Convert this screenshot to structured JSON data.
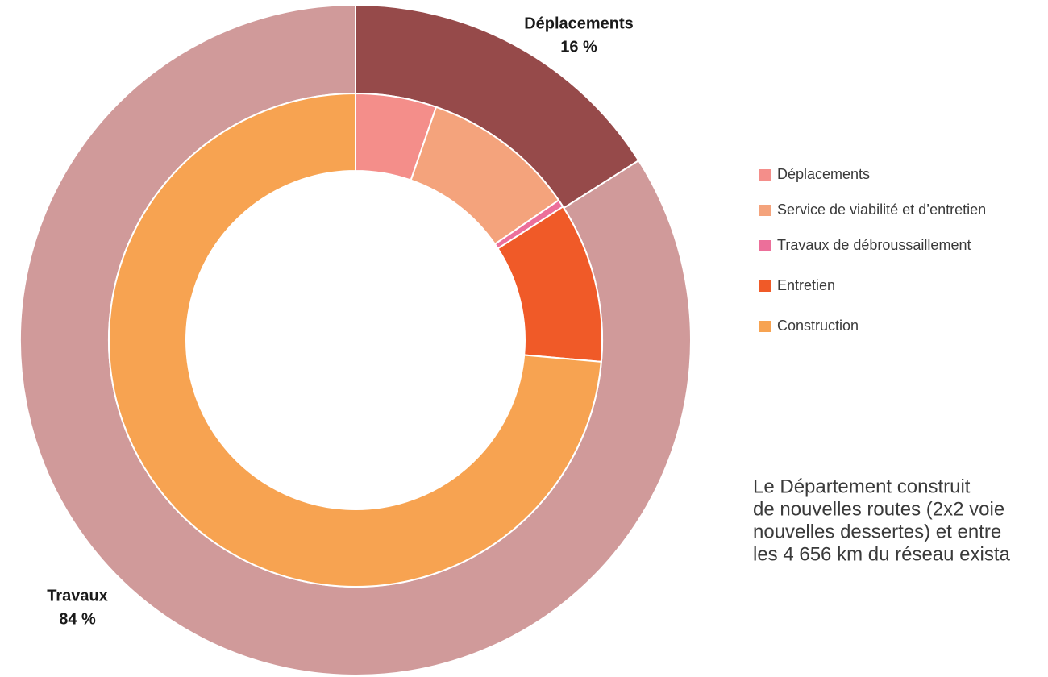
{
  "chart_data": {
    "type": "donut",
    "rings": [
      {
        "categories": [
          "Déplacements",
          "Travaux"
        ],
        "values": [
          16,
          84
        ],
        "value_labels": [
          "16 %",
          "84 %"
        ],
        "colors": [
          "#964a4a",
          "#d09a9a"
        ]
      },
      {
        "categories": [
          "Déplacements",
          "Service de viabilité et d’entretien",
          "Travaux de débroussaillement",
          "Entretien",
          "Construction"
        ],
        "values": [
          5.3,
          10.1,
          0.5,
          10.5,
          73.6
        ],
        "colors": [
          "#f48e8a",
          "#f4a37c",
          "#ec6f9a",
          "#f05a28",
          "#f7a351"
        ]
      }
    ],
    "annotation": [
      "Le Département construit",
      "de nouvelles routes (2x2 voie",
      "nouvelles dessertes) et entre",
      "les 4 656 km du réseau exista"
    ]
  }
}
